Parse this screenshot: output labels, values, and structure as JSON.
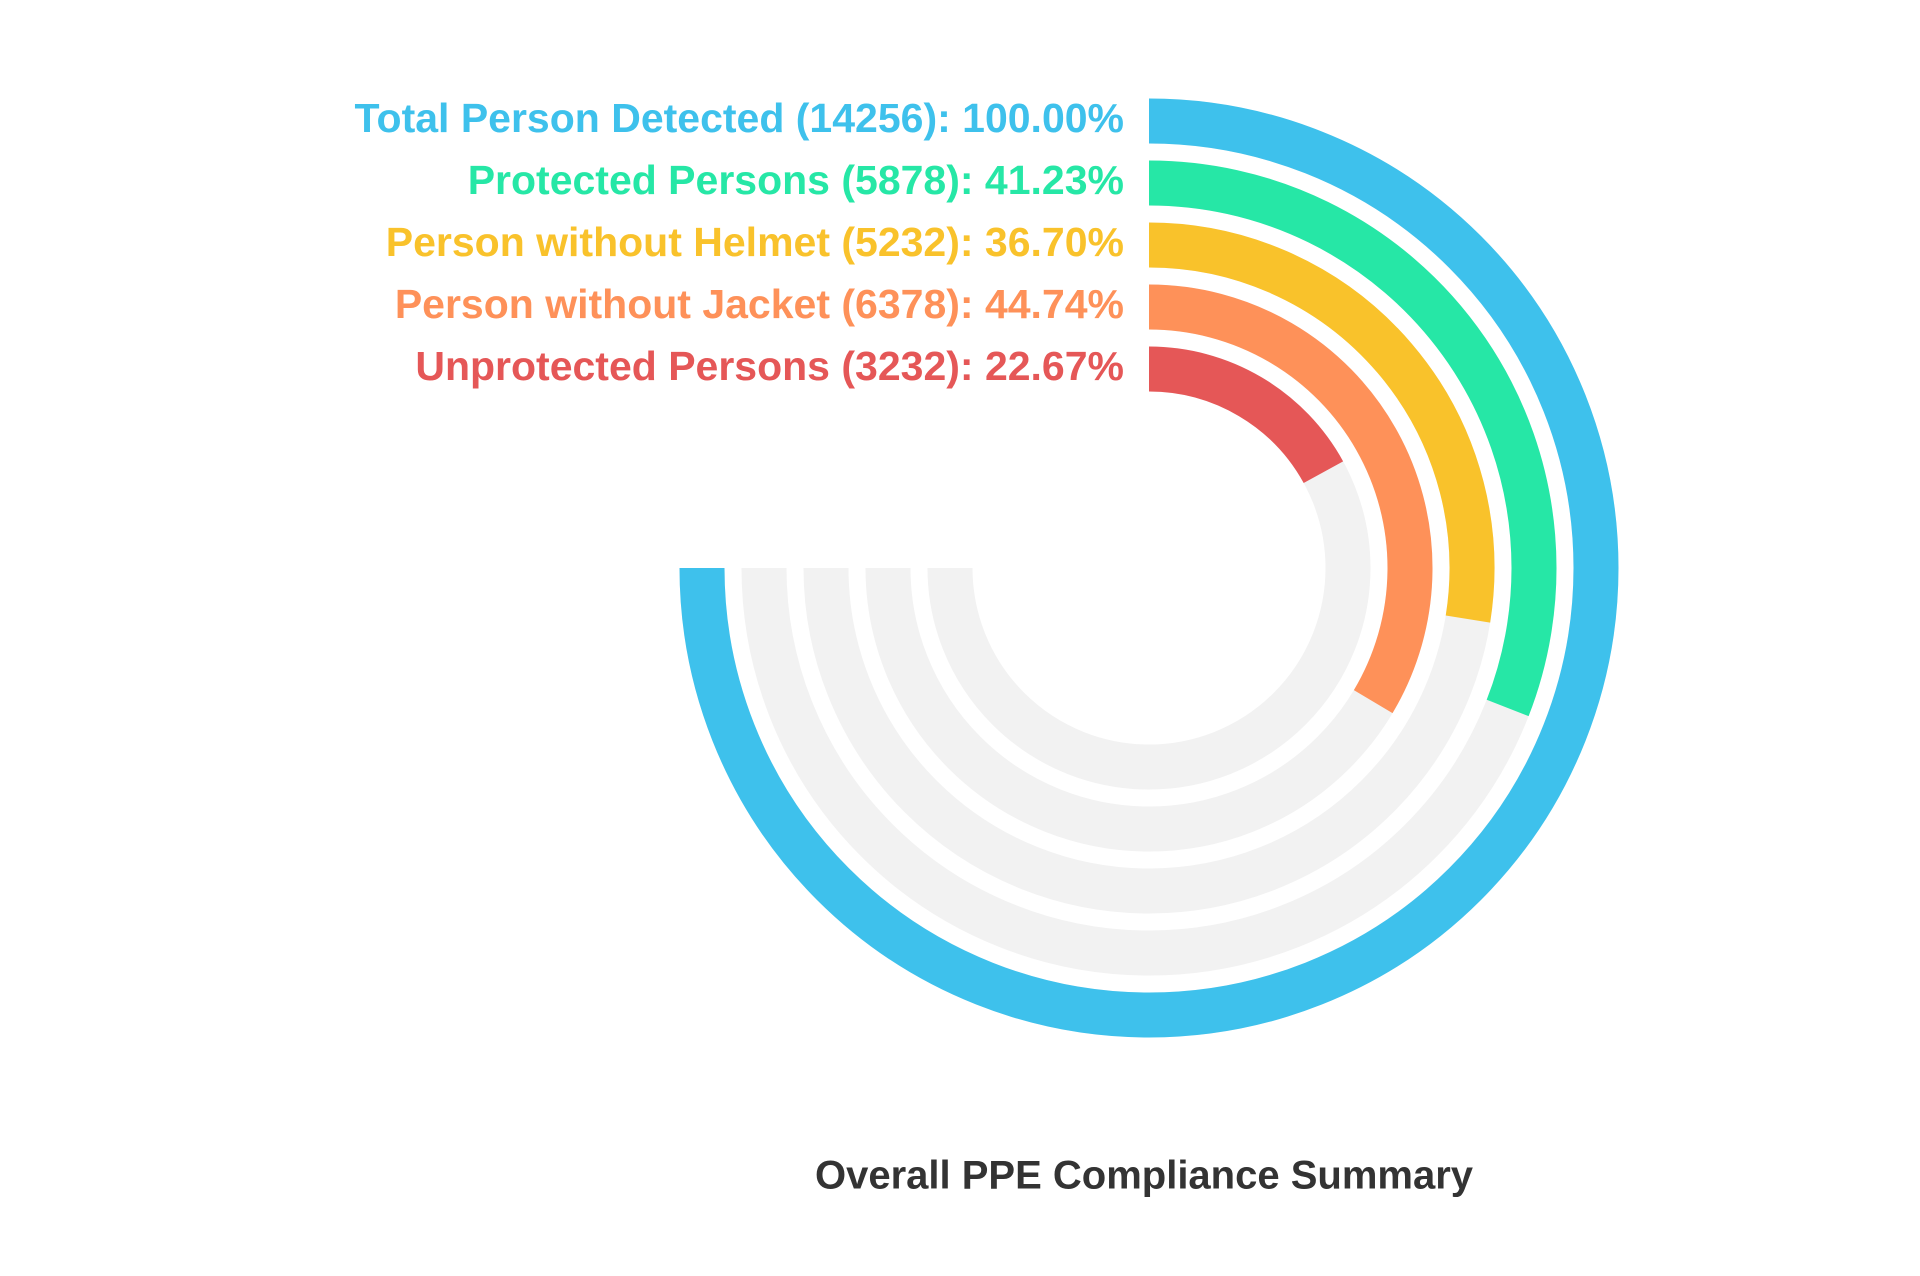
{
  "chart_data": {
    "type": "radialBar",
    "title": "Overall PPE Compliance Summary",
    "categories": [
      "Total Person Detected (14256): 100.00%",
      "Protected Persons (5878): 41.23%",
      "Person without Helmet (5232): 36.70%",
      "Person without Jacket (6378): 44.74%",
      "Unprotected Persons (3232): 22.67%"
    ],
    "values": [
      100,
      41.23,
      36.7,
      44.74,
      22.67
    ],
    "colors": [
      "#3ec1ec",
      "#26e7a6",
      "#f9c22b",
      "#fe9159",
      "#e55757"
    ],
    "ylim": [
      0,
      100
    ]
  }
}
